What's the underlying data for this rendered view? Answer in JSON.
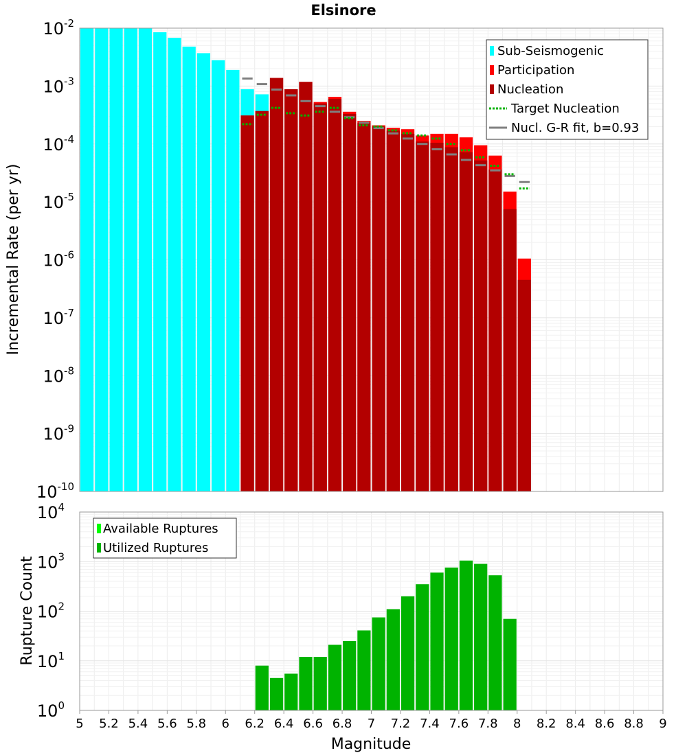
{
  "chart_data": [
    {
      "type": "bar",
      "title": "Elsinore",
      "xlabel": "",
      "ylabel": "Incremental Rate (per yr)",
      "xlim": [
        5,
        9
      ],
      "ylim": [
        1e-10,
        0.01
      ],
      "yscale": "log",
      "bin_width": 0.1,
      "grid": true,
      "legend_position": "top-right",
      "colors": {
        "sub_seismogenic": "#00FFFF",
        "participation": "#FF0000",
        "nucleation": "#B30000",
        "target_nucleation": "#00B300",
        "gr_fit": "#808080"
      },
      "legend": [
        "Sub-Seismogenic",
        "Participation",
        "Nucleation",
        "Target Nucleation",
        "Nucl. G-R fit, b=0.93"
      ],
      "series": [
        {
          "name": "Sub-Seismogenic",
          "x": [
            5.05,
            5.15,
            5.25,
            5.35,
            5.45,
            5.55,
            5.65,
            5.75,
            5.85,
            5.95,
            6.05,
            6.15,
            6.25
          ],
          "values": [
            0.01,
            0.01,
            0.01,
            0.01,
            0.01,
            0.0085,
            0.0068,
            0.0048,
            0.0037,
            0.0028,
            0.0019,
            0.00088,
            0.00072
          ]
        },
        {
          "name": "Participation",
          "x": [
            6.15,
            6.25,
            6.35,
            6.45,
            6.55,
            6.65,
            6.75,
            6.85,
            6.95,
            7.05,
            7.15,
            7.25,
            7.35,
            7.45,
            7.55,
            7.65,
            7.75,
            7.85,
            7.95,
            8.05
          ],
          "values": [
            0.00031,
            0.00037,
            0.00138,
            0.00088,
            0.00118,
            0.00053,
            0.00065,
            0.00036,
            0.00025,
            0.00021,
            0.00019,
            0.00018,
            0.00014,
            0.00015,
            0.00015,
            0.00013,
            9.5e-05,
            6.3e-05,
            1.5e-05,
            1.05e-06
          ]
        },
        {
          "name": "Nucleation",
          "x": [
            6.15,
            6.25,
            6.35,
            6.45,
            6.55,
            6.65,
            6.75,
            6.85,
            6.95,
            7.05,
            7.15,
            7.25,
            7.35,
            7.45,
            7.55,
            7.65,
            7.75,
            7.85,
            7.95,
            8.05
          ],
          "values": [
            0.00031,
            0.00037,
            0.00138,
            0.00088,
            0.00118,
            0.0005,
            0.0006,
            0.00033,
            0.00023,
            0.0002,
            0.00017,
            0.00015,
            0.00011,
            0.000105,
            8.8e-05,
            7.2e-05,
            5.2e-05,
            3.6e-05,
            7.5e-06,
            4.5e-07
          ]
        },
        {
          "name": "Target Nucleation",
          "x": [
            6.15,
            6.25,
            6.35,
            6.45,
            6.55,
            6.65,
            6.75,
            6.85,
            6.95,
            7.05,
            7.15,
            7.25,
            7.35,
            7.45,
            7.55,
            7.65,
            7.75,
            7.85,
            7.95,
            8.05
          ],
          "values": [
            0.00022,
            0.00032,
            0.00042,
            0.00034,
            0.00031,
            0.00036,
            0.00042,
            0.00028,
            0.00021,
            0.0002,
            0.000172,
            0.000153,
            0.00014,
            0.000124,
            0.0001,
            7.8e-05,
            5.9e-05,
            4.2e-05,
            3e-05,
            1.7e-05
          ]
        },
        {
          "name": "Nucl. G-R fit, b=0.93",
          "x": [
            6.15,
            6.25,
            6.35,
            6.45,
            6.55,
            6.65,
            6.75,
            6.85,
            6.95,
            7.05,
            7.15,
            7.25,
            7.35,
            7.45,
            7.55,
            7.65,
            7.75,
            7.85,
            7.95,
            8.05
          ],
          "values": [
            0.00135,
            0.00108,
            0.00087,
            0.00069,
            0.00055,
            0.00045,
            0.00036,
            0.00029,
            0.000233,
            0.000188,
            0.000152,
            0.000124,
            0.0001,
            8.1e-05,
            6.6e-05,
            5.3e-05,
            4.3e-05,
            3.5e-05,
            2.8e-05,
            2.2e-05
          ]
        }
      ]
    },
    {
      "type": "bar",
      "title": "",
      "xlabel": "Magnitude",
      "ylabel": "Rupture Count",
      "xlim": [
        5,
        9
      ],
      "ylim": [
        1,
        10000
      ],
      "yscale": "log",
      "bin_width": 0.1,
      "grid": true,
      "legend_position": "top-left",
      "x_ticks": [
        5,
        5.2,
        5.4,
        5.6,
        5.8,
        6,
        6.2,
        6.4,
        6.6,
        6.8,
        7,
        7.2,
        7.4,
        7.6,
        7.8,
        8,
        8.2,
        8.4,
        8.6,
        8.8,
        9
      ],
      "colors": {
        "available": "#00FF00",
        "utilized": "#00B300"
      },
      "legend": [
        "Available Ruptures",
        "Utilized Ruptures"
      ],
      "series": [
        {
          "name": "Utilized Ruptures",
          "x": [
            6.25,
            6.35,
            6.45,
            6.55,
            6.65,
            6.75,
            6.85,
            6.95,
            7.05,
            7.15,
            7.25,
            7.35,
            7.45,
            7.55,
            7.65,
            7.75,
            7.85,
            7.95
          ],
          "values": [
            8,
            4.5,
            5.5,
            12,
            12,
            21,
            25,
            41,
            75,
            110,
            200,
            350,
            600,
            760,
            1050,
            900,
            530,
            70
          ]
        }
      ]
    }
  ]
}
